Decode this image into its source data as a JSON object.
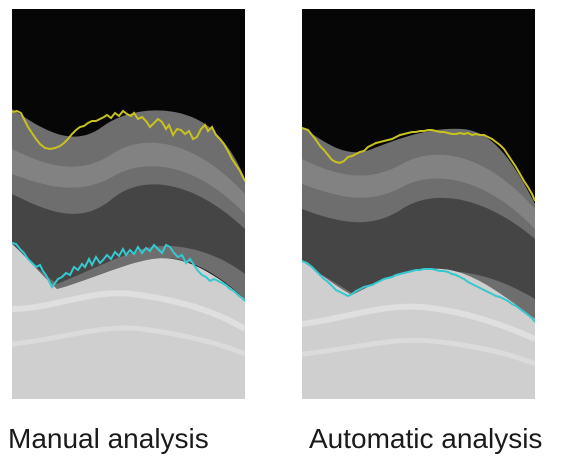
{
  "figure": {
    "panels": [
      {
        "caption": "Manual analysis",
        "upper_contour_color": "#c8c21e",
        "lower_contour_color": "#35c8cf",
        "contour_style": "jagged"
      },
      {
        "caption": "Automatic analysis",
        "upper_contour_color": "#c8c21e",
        "lower_contour_color": "#35c8cf",
        "contour_style": "smooth"
      }
    ]
  }
}
